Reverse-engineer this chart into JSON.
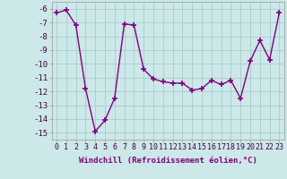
{
  "x": [
    0,
    1,
    2,
    3,
    4,
    5,
    6,
    7,
    8,
    9,
    10,
    11,
    12,
    13,
    14,
    15,
    16,
    17,
    18,
    19,
    20,
    21,
    22,
    23
  ],
  "y": [
    -6.3,
    -6.1,
    -7.2,
    -11.8,
    -14.9,
    -14.1,
    -12.5,
    -7.1,
    -7.2,
    -10.4,
    -11.1,
    -11.3,
    -11.4,
    -11.4,
    -11.9,
    -11.8,
    -11.2,
    -11.5,
    -11.2,
    -12.5,
    -9.8,
    -8.3,
    -9.7,
    -6.3
  ],
  "color": "#800080",
  "bg_color": "#cce8e8",
  "grid_color": "#aacccc",
  "xlabel": "Windchill (Refroidissement éolien,°C)",
  "ylim": [
    -15.5,
    -5.5
  ],
  "xlim": [
    -0.5,
    23.5
  ],
  "yticks": [
    -6,
    -7,
    -8,
    -9,
    -10,
    -11,
    -12,
    -13,
    -14,
    -15
  ],
  "xticks": [
    0,
    1,
    2,
    3,
    4,
    5,
    6,
    7,
    8,
    9,
    10,
    11,
    12,
    13,
    14,
    15,
    16,
    17,
    18,
    19,
    20,
    21,
    22,
    23
  ],
  "marker": "+",
  "markersize": 4,
  "linewidth": 1.0,
  "xlabel_fontsize": 6.5,
  "tick_fontsize": 6.0,
  "ytick_fontsize": 6.5
}
